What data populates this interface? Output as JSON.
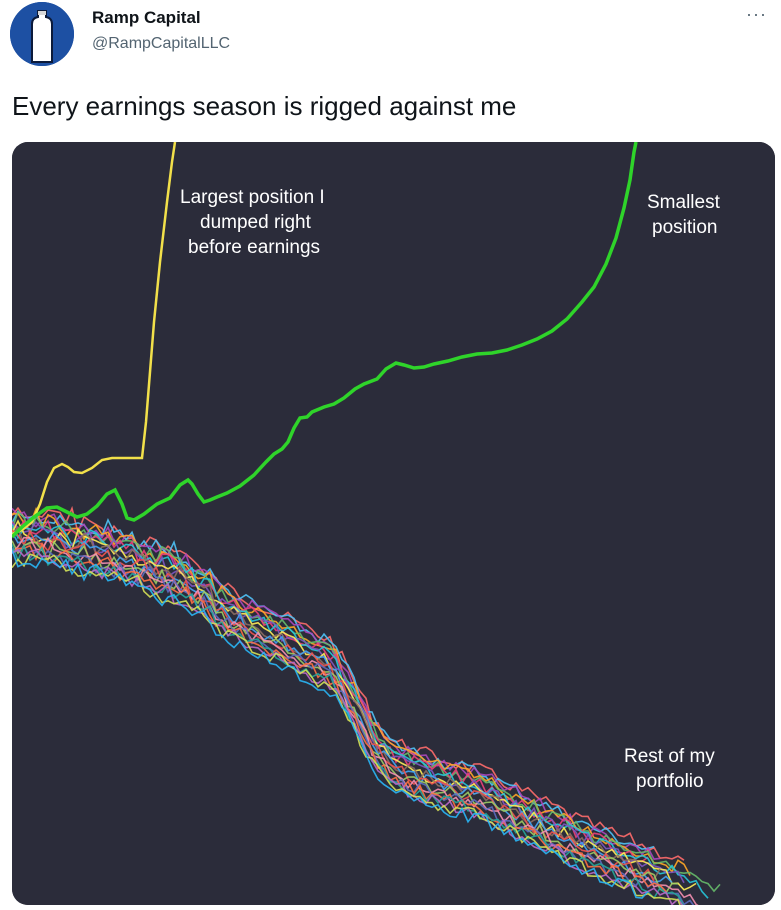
{
  "author": {
    "display_name": "Ramp Capital",
    "handle": "@RampCapitalLLC",
    "avatar_icon": "lightbulb-shirt-avatar-icon"
  },
  "more_menu": {
    "icon": "more-horizontal-icon",
    "label": "···"
  },
  "tweet": {
    "text": "Every earnings season is rigged against me"
  },
  "meme": {
    "annotations": {
      "largest": [
        "Largest position I",
        "dumped right",
        "before earnings"
      ],
      "smallest": [
        "Smallest",
        "position"
      ],
      "rest": [
        "Rest of my",
        "portfolio"
      ]
    },
    "colors": {
      "background": "#2b2c3a",
      "largest_line": "#f2e04a",
      "smallest_line": "#2fd42a",
      "rest_lines": [
        "#ff6b6b",
        "#4fc3f7",
        "#ab47bc",
        "#ffa726",
        "#66bb6a",
        "#ec407a",
        "#26c6da",
        "#7e57c2",
        "#ffee58",
        "#8d6e63",
        "#42a5f5",
        "#ef5350",
        "#9ccc65",
        "#f48fb1",
        "#5c6bc0",
        "#ff7043",
        "#26a69a",
        "#ba68c8",
        "#d4e157",
        "#29b6f6"
      ]
    }
  }
}
